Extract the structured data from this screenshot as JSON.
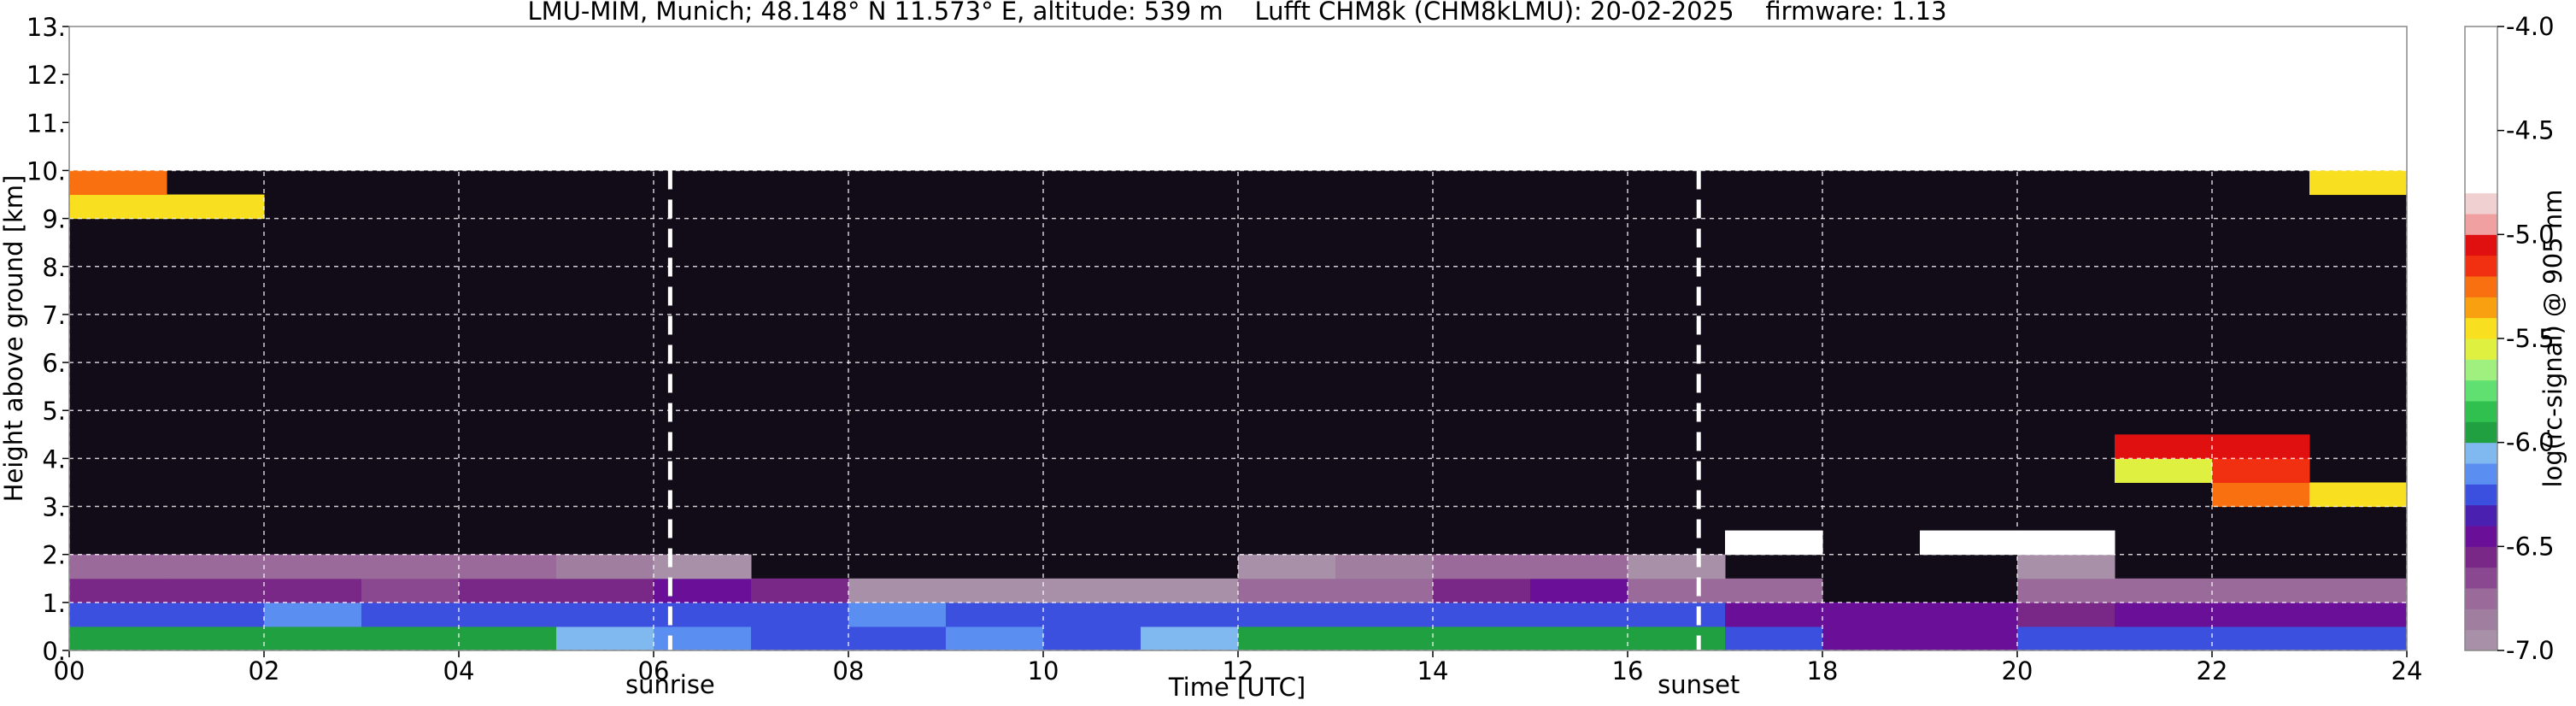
{
  "chart_data": {
    "type": "heatmap",
    "title": "LMU-MIM, Munich; 48.148° N 11.573° E, altitude: 539 m    Lufft CHM8k (CHM8kLMU): 20-02-2025    firmware: 1.13",
    "xlabel": "Time [UTC]",
    "ylabel": "Height above ground [km]",
    "xlim": [
      0,
      24
    ],
    "ylim": [
      0,
      13
    ],
    "xticks": [
      {
        "value": 0,
        "label": "00"
      },
      {
        "value": 2,
        "label": "02"
      },
      {
        "value": 4,
        "label": "04"
      },
      {
        "value": 6,
        "label": "06"
      },
      {
        "value": 8,
        "label": "08"
      },
      10,
      12,
      14,
      16,
      18,
      20,
      22,
      24
    ],
    "yticks": [
      {
        "value": 0,
        "label": "0."
      },
      {
        "value": 1,
        "label": "1."
      },
      {
        "value": 2,
        "label": "2."
      },
      {
        "value": 3,
        "label": "3."
      },
      {
        "value": 4,
        "label": "4."
      },
      {
        "value": 5,
        "label": "5."
      },
      {
        "value": 6,
        "label": "6."
      },
      {
        "value": 7,
        "label": "7."
      },
      {
        "value": 8,
        "label": "8."
      },
      {
        "value": 9,
        "label": "9."
      },
      {
        "value": 10,
        "label": "10."
      },
      {
        "value": 11,
        "label": "11."
      },
      {
        "value": 12,
        "label": "12."
      },
      {
        "value": 13,
        "label": "13."
      }
    ],
    "grid": true,
    "x": [
      0.5,
      1.5,
      2.5,
      3.5,
      4.5,
      5.5,
      6.5,
      7.5,
      8.5,
      9.5,
      10.5,
      11.5,
      12.5,
      13.5,
      14.5,
      15.5,
      16.5,
      17.5,
      18.5,
      19.5,
      20.5,
      21.5,
      22.5,
      23.5
    ],
    "y": [
      0.25,
      0.75,
      1.25,
      1.75,
      2.25,
      2.75,
      3.25,
      3.75,
      4.25,
      4.75,
      5.25,
      5.75,
      6.25,
      6.75,
      7.25,
      7.75,
      8.25,
      8.75,
      9.25,
      9.75
    ],
    "z": [
      [
        -5.95,
        -5.95,
        -5.9,
        -5.95,
        -6.0,
        -6.05,
        -6.15,
        -6.2,
        -6.2,
        -6.15,
        -6.2,
        -6.05,
        -5.95,
        -5.95,
        -5.95,
        -5.95,
        -5.95,
        -6.3,
        -6.45,
        -6.4,
        -6.3,
        -6.2,
        -6.25,
        -6.2
      ],
      [
        -6.25,
        -6.25,
        -6.15,
        -6.2,
        -6.2,
        -6.25,
        -6.25,
        -6.3,
        -6.15,
        -6.2,
        -6.2,
        -6.25,
        -6.3,
        -6.25,
        -6.2,
        -6.25,
        -6.3,
        -6.5,
        -6.45,
        -6.5,
        -6.55,
        -6.5,
        -6.5,
        -6.45
      ],
      [
        -6.6,
        -6.6,
        -6.6,
        -6.65,
        -6.6,
        -6.55,
        -6.5,
        -6.55,
        -6.9,
        -6.95,
        -6.95,
        -6.9,
        -6.75,
        -6.7,
        -6.6,
        -6.45,
        -6.7,
        -6.8,
        null,
        null,
        -6.8,
        -6.8,
        -6.75,
        -6.75
      ],
      [
        -6.75,
        -6.7,
        -6.7,
        -6.75,
        -6.8,
        -6.85,
        -6.9,
        null,
        null,
        null,
        null,
        null,
        -6.9,
        -6.85,
        -6.8,
        -6.8,
        -6.9,
        null,
        null,
        null,
        -6.9,
        null,
        null,
        null
      ],
      [
        null,
        null,
        null,
        null,
        null,
        null,
        null,
        null,
        null,
        null,
        null,
        null,
        null,
        null,
        null,
        null,
        null,
        -4.7,
        null,
        -4.7,
        -4.8,
        null,
        null,
        null
      ],
      [
        null,
        null,
        null,
        null,
        null,
        null,
        null,
        null,
        null,
        null,
        null,
        null,
        null,
        null,
        null,
        null,
        null,
        null,
        null,
        null,
        null,
        null,
        null,
        null
      ],
      [
        null,
        null,
        null,
        null,
        null,
        null,
        null,
        null,
        null,
        null,
        null,
        null,
        null,
        null,
        null,
        null,
        null,
        null,
        null,
        null,
        null,
        null,
        -5.3,
        -5.5
      ],
      [
        null,
        null,
        null,
        null,
        null,
        null,
        null,
        null,
        null,
        null,
        null,
        null,
        null,
        null,
        null,
        null,
        null,
        null,
        null,
        null,
        null,
        -5.6,
        -5.2,
        null
      ],
      [
        null,
        null,
        null,
        null,
        null,
        null,
        null,
        null,
        null,
        null,
        null,
        null,
        null,
        null,
        null,
        null,
        null,
        null,
        null,
        null,
        null,
        -5.1,
        -5.1,
        null
      ],
      [
        null,
        null,
        null,
        null,
        null,
        null,
        null,
        null,
        null,
        null,
        null,
        null,
        null,
        null,
        null,
        null,
        null,
        null,
        null,
        null,
        null,
        null,
        null,
        null
      ],
      [
        null,
        null,
        null,
        null,
        null,
        null,
        null,
        null,
        null,
        null,
        null,
        null,
        null,
        null,
        null,
        null,
        null,
        null,
        null,
        null,
        null,
        null,
        null,
        null
      ],
      [
        null,
        null,
        null,
        null,
        null,
        null,
        null,
        null,
        null,
        null,
        null,
        null,
        null,
        null,
        null,
        null,
        null,
        null,
        null,
        null,
        null,
        null,
        null,
        null
      ],
      [
        null,
        null,
        null,
        null,
        null,
        null,
        null,
        null,
        null,
        null,
        null,
        null,
        null,
        null,
        null,
        null,
        null,
        null,
        null,
        null,
        null,
        null,
        null,
        null
      ],
      [
        null,
        null,
        null,
        null,
        null,
        null,
        null,
        null,
        null,
        null,
        null,
        null,
        null,
        null,
        null,
        null,
        null,
        null,
        null,
        null,
        null,
        null,
        null,
        null
      ],
      [
        null,
        null,
        null,
        null,
        null,
        null,
        null,
        null,
        null,
        null,
        null,
        null,
        null,
        null,
        null,
        null,
        null,
        null,
        null,
        null,
        null,
        null,
        null,
        null
      ],
      [
        null,
        null,
        null,
        null,
        null,
        null,
        null,
        null,
        null,
        null,
        null,
        null,
        null,
        null,
        null,
        null,
        null,
        null,
        null,
        null,
        null,
        null,
        null,
        null
      ],
      [
        null,
        null,
        null,
        null,
        null,
        null,
        null,
        null,
        null,
        null,
        null,
        null,
        null,
        null,
        null,
        null,
        null,
        null,
        null,
        null,
        null,
        null,
        null,
        null
      ],
      [
        null,
        null,
        null,
        null,
        null,
        null,
        null,
        null,
        null,
        null,
        null,
        null,
        null,
        null,
        null,
        null,
        null,
        null,
        null,
        null,
        null,
        null,
        null,
        null
      ],
      [
        -5.5,
        -5.4,
        null,
        null,
        null,
        null,
        null,
        null,
        null,
        null,
        null,
        null,
        null,
        null,
        null,
        null,
        null,
        null,
        null,
        null,
        null,
        null,
        null,
        null
      ],
      [
        -5.3,
        null,
        null,
        null,
        null,
        null,
        null,
        null,
        null,
        null,
        null,
        null,
        null,
        null,
        null,
        null,
        null,
        null,
        null,
        null,
        null,
        null,
        null,
        -5.5
      ]
    ],
    "annotations": [
      {
        "text": "sunrise",
        "x": 6.17
      },
      {
        "text": "sunset",
        "x": 16.73
      }
    ],
    "colorbar": {
      "label": "log(rc-signal) @ 905 nm",
      "clim": [
        -7,
        -4
      ],
      "ticks": [
        {
          "value": -4,
          "label": "-4.0"
        },
        -4.5,
        {
          "value": -5,
          "label": "-5.0"
        },
        -5.5,
        {
          "value": -6,
          "label": "-6.0"
        },
        -6.5,
        {
          "value": -7,
          "label": "-7.0"
        }
      ],
      "colors": [
        "#a890a8",
        "#a07ea0",
        "#9a6a9a",
        "#8a4890",
        "#7a2888",
        "#6a1098",
        "#4a20b0",
        "#3c50e0",
        "#5a8ef0",
        "#80b8f0",
        "#20a040",
        "#30c050",
        "#60e070",
        "#a0f080",
        "#e0f040",
        "#f8e020",
        "#f8a010",
        "#f87010",
        "#f03010",
        "#e01010",
        "#f0a0a0",
        "#f0d0d0",
        "#ffffff",
        "#ffffff",
        "#ffffff",
        "#ffffff",
        "#ffffff",
        "#ffffff",
        "#ffffff",
        "#ffffff"
      ]
    }
  }
}
